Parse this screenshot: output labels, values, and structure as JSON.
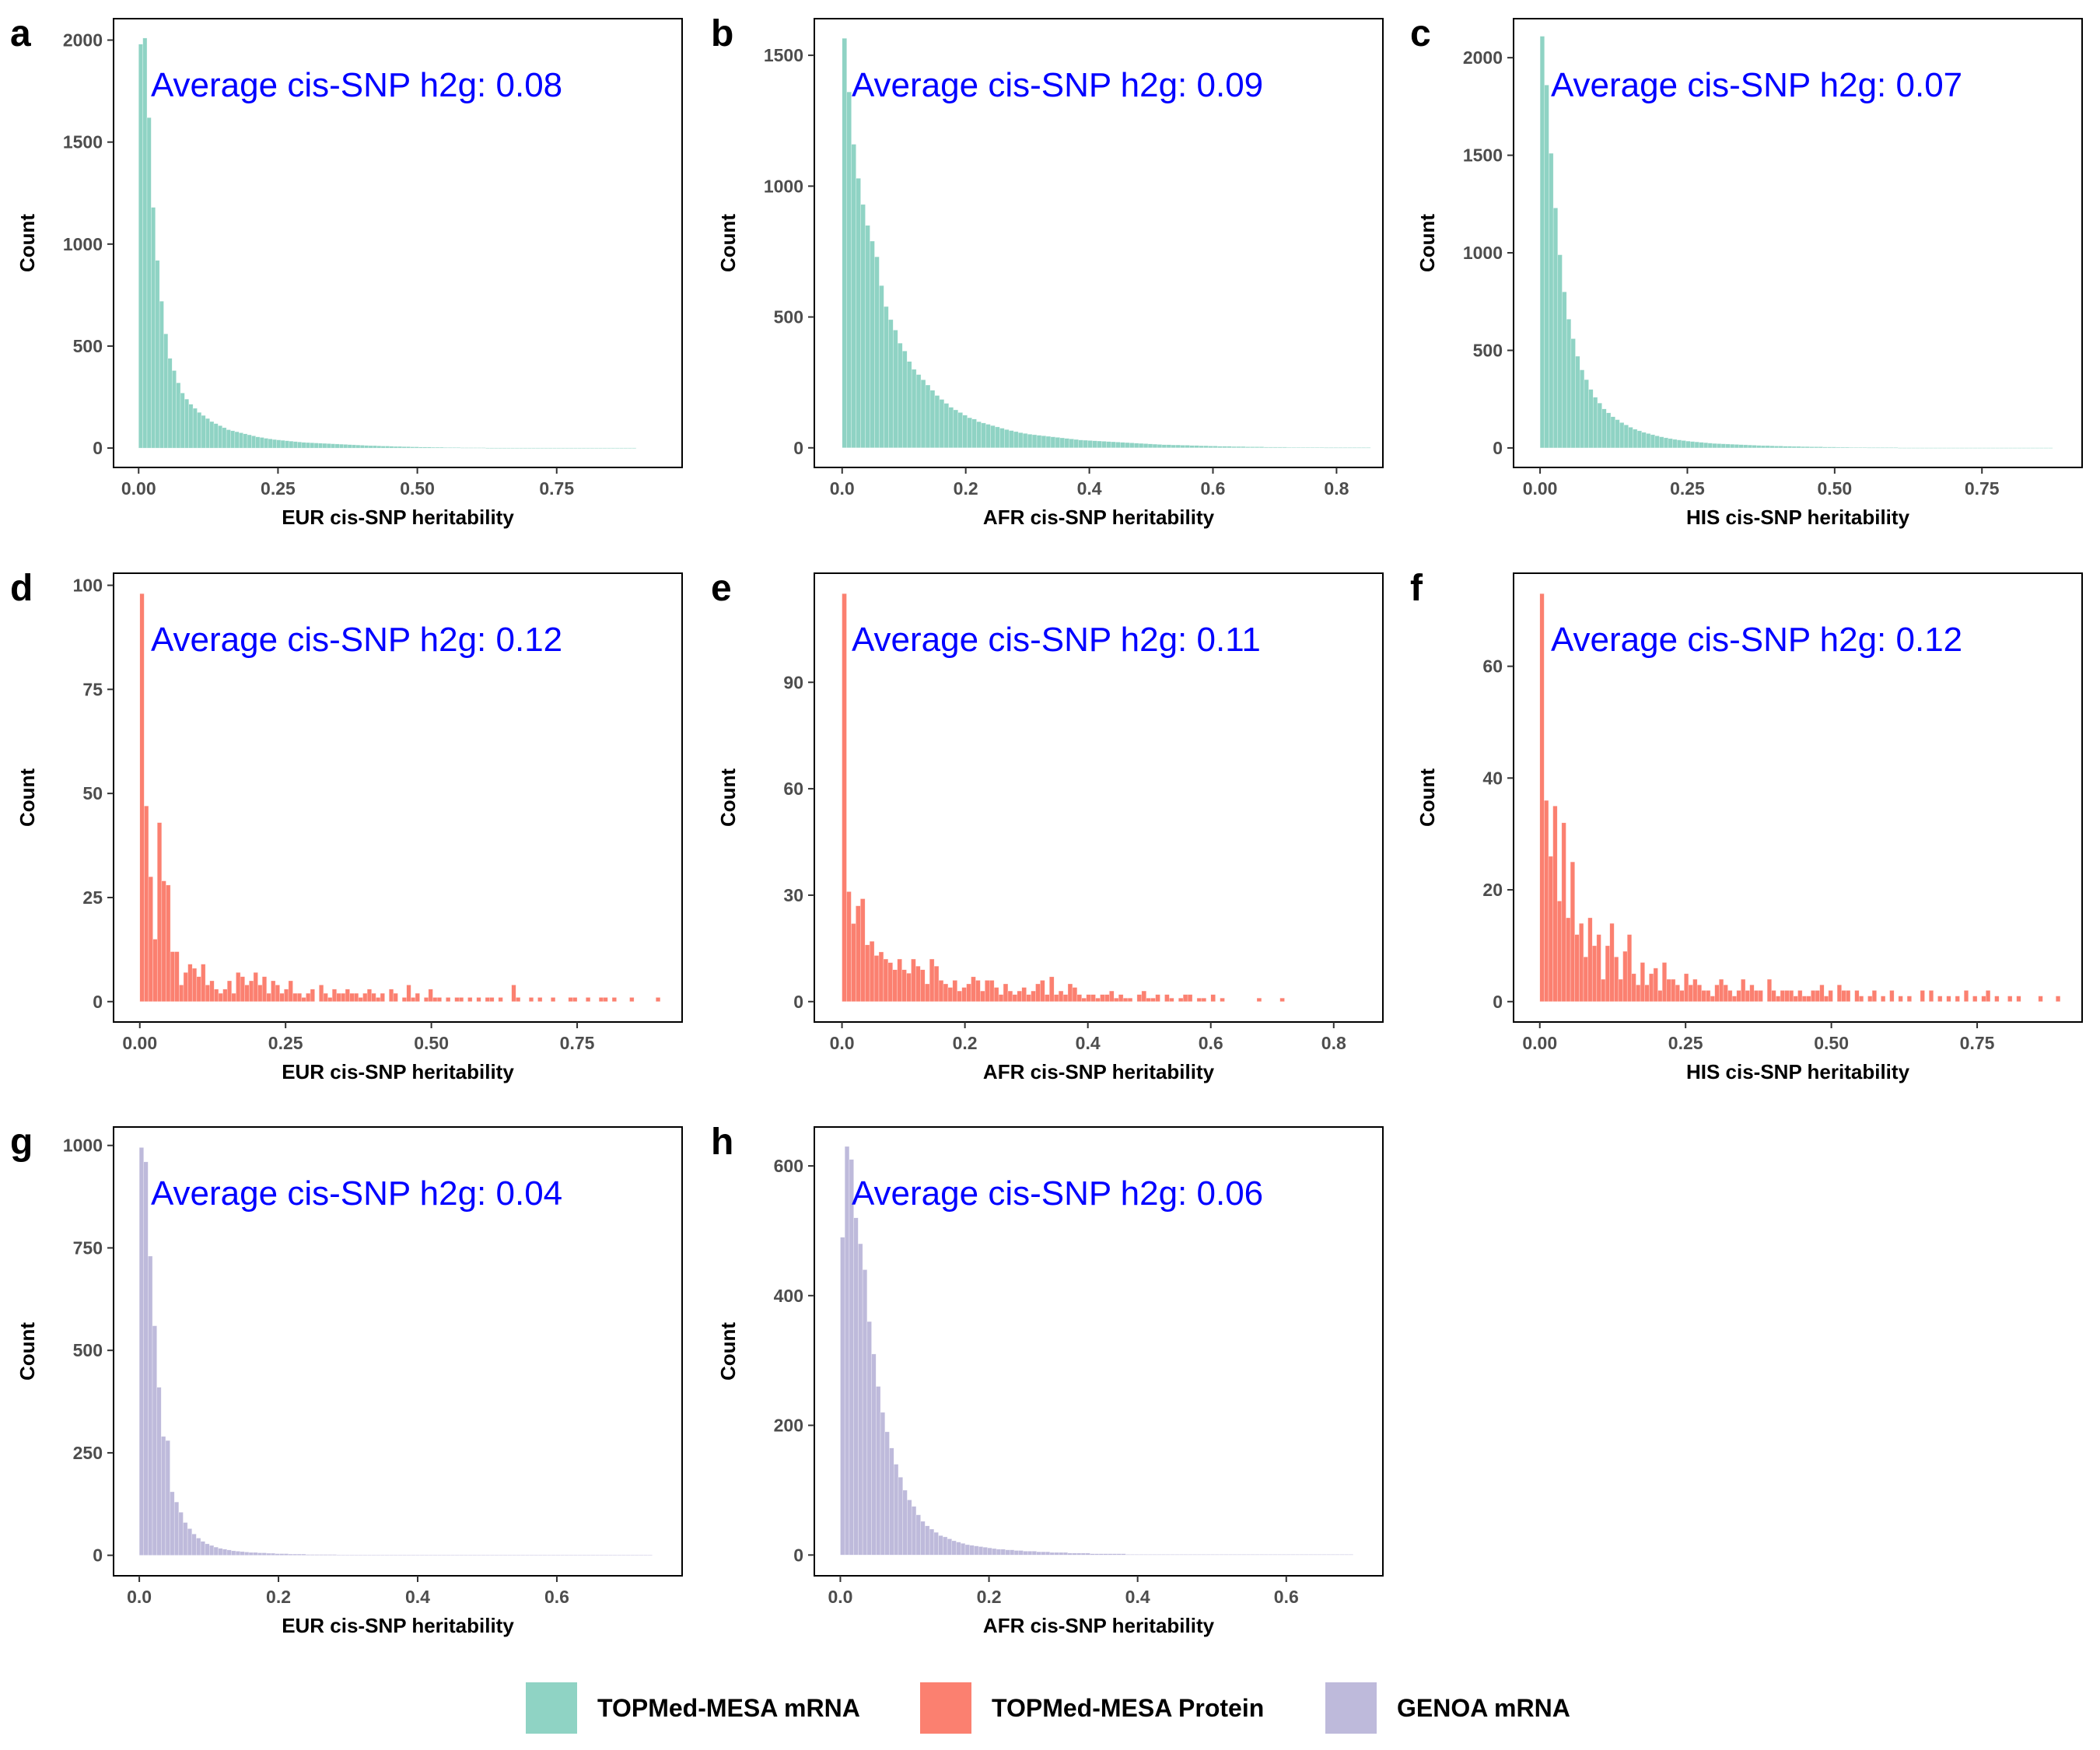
{
  "legend": [
    {
      "label": "TOPMed-MESA mRNA",
      "color": "#8fd3c4"
    },
    {
      "label": "TOPMed-MESA Protein",
      "color": "#fb8070"
    },
    {
      "label": "GENOA mRNA",
      "color": "#bebadb"
    }
  ],
  "chart_data": [
    {
      "panel": "a",
      "type": "bar",
      "ylabel": "Count",
      "xlabel": "EUR cis-SNP heritability",
      "annotation": "Average cis-SNP h2g: 0.08",
      "color": "#8fd3c4",
      "xlim": [
        -0.045,
        0.975
      ],
      "ylim": [
        -95,
        2105
      ],
      "xticks": [
        0.0,
        0.25,
        0.5,
        0.75
      ],
      "xtick_labels": [
        "0.00",
        "0.25",
        "0.50",
        "0.75"
      ],
      "yticks": [
        0,
        500,
        1000,
        1500,
        2000
      ],
      "ytick_labels": [
        "0",
        "500",
        "1000",
        "1500",
        "2000"
      ],
      "x_start": 0.0,
      "bin_width": 0.0075,
      "values": [
        1980,
        2010,
        1620,
        1180,
        920,
        720,
        560,
        440,
        380,
        320,
        270,
        240,
        215,
        195,
        175,
        160,
        145,
        130,
        120,
        110,
        100,
        90,
        85,
        80,
        75,
        70,
        65,
        60,
        55,
        52,
        48,
        45,
        42,
        40,
        38,
        36,
        34,
        32,
        30,
        28,
        27,
        26,
        25,
        24,
        23,
        22,
        21,
        20,
        19,
        18,
        17,
        16,
        15,
        14,
        13,
        12,
        12,
        11,
        10,
        10,
        9,
        8,
        8,
        7,
        7,
        6,
        6,
        5,
        5,
        5,
        4,
        4,
        4,
        3,
        3,
        3,
        3,
        2,
        2,
        2,
        2,
        2,
        2,
        1,
        1,
        1,
        1,
        1,
        1,
        1,
        1,
        1,
        1,
        1,
        1,
        1,
        1,
        1,
        1,
        1,
        1,
        1,
        1,
        1,
        1,
        1,
        1,
        1,
        1,
        1,
        1,
        1,
        1,
        1,
        1,
        1,
        1,
        1,
        1
      ]
    },
    {
      "panel": "b",
      "type": "bar",
      "ylabel": "Count",
      "xlabel": "AFR cis-SNP heritability",
      "annotation": "Average cis-SNP h2g: 0.09",
      "color": "#8fd3c4",
      "xlim": [
        -0.045,
        0.875
      ],
      "ylim": [
        -75,
        1640
      ],
      "xticks": [
        0.0,
        0.2,
        0.4,
        0.6,
        0.8
      ],
      "xtick_labels": [
        "0.0",
        "0.2",
        "0.4",
        "0.6",
        "0.8"
      ],
      "yticks": [
        0,
        500,
        1000,
        1500
      ],
      "ytick_labels": [
        "0",
        "500",
        "1000",
        "1500"
      ],
      "x_start": 0.0,
      "bin_width": 0.0075,
      "values": [
        1565,
        1360,
        1160,
        1030,
        930,
        850,
        790,
        730,
        620,
        540,
        490,
        450,
        400,
        370,
        330,
        300,
        280,
        260,
        240,
        220,
        200,
        185,
        170,
        155,
        145,
        135,
        125,
        115,
        110,
        100,
        95,
        90,
        85,
        80,
        75,
        70,
        66,
        62,
        58,
        55,
        52,
        50,
        48,
        46,
        44,
        42,
        40,
        38,
        36,
        34,
        32,
        30,
        29,
        28,
        27,
        26,
        25,
        24,
        23,
        22,
        21,
        20,
        19,
        18,
        17,
        16,
        15,
        14,
        13,
        12,
        12,
        11,
        11,
        10,
        10,
        9,
        9,
        8,
        8,
        7,
        7,
        6,
        6,
        6,
        5,
        5,
        5,
        4,
        4,
        4,
        4,
        3,
        3,
        3,
        3,
        3,
        2,
        2,
        2,
        2,
        2,
        2,
        2,
        2,
        1,
        1,
        1,
        1,
        1,
        1,
        1,
        1,
        1,
        1
      ]
    },
    {
      "panel": "c",
      "type": "bar",
      "ylabel": "Count",
      "xlabel": "HIS cis-SNP heritability",
      "annotation": "Average cis-SNP h2g: 0.07",
      "color": "#8fd3c4",
      "xlim": [
        -0.045,
        0.92
      ],
      "ylim": [
        -100,
        2200
      ],
      "xticks": [
        0.0,
        0.25,
        0.5,
        0.75
      ],
      "xtick_labels": [
        "0.00",
        "0.25",
        "0.50",
        "0.75"
      ],
      "yticks": [
        0,
        500,
        1000,
        1500,
        2000
      ],
      "ytick_labels": [
        "0",
        "500",
        "1000",
        "1500",
        "2000"
      ],
      "x_start": 0.0,
      "bin_width": 0.0075,
      "values": [
        2110,
        1860,
        1510,
        1230,
        990,
        800,
        660,
        560,
        470,
        400,
        350,
        300,
        260,
        230,
        200,
        180,
        160,
        145,
        130,
        118,
        106,
        96,
        88,
        80,
        74,
        68,
        62,
        57,
        52,
        48,
        44,
        41,
        38,
        35,
        33,
        31,
        29,
        27,
        25,
        23,
        22,
        21,
        20,
        19,
        18,
        17,
        16,
        15,
        14,
        13,
        12,
        12,
        11,
        10,
        10,
        9,
        9,
        8,
        8,
        7,
        7,
        6,
        6,
        6,
        5,
        5,
        5,
        4,
        4,
        4,
        3,
        3,
        3,
        3,
        2,
        2,
        2,
        2,
        2,
        2,
        2,
        1,
        1,
        1,
        1,
        1,
        1,
        1,
        1,
        1,
        1,
        1,
        1,
        1,
        1,
        1,
        1,
        1,
        1,
        1,
        1,
        1,
        1,
        1,
        1,
        1,
        1,
        1,
        1,
        1,
        1,
        1,
        1,
        1,
        1,
        1
      ]
    },
    {
      "panel": "d",
      "type": "bar",
      "ylabel": "Count",
      "xlabel": "EUR cis-SNP heritability",
      "annotation": "Average cis-SNP h2g: 0.12",
      "color": "#fb8070",
      "xlim": [
        -0.045,
        0.93
      ],
      "ylim": [
        -4.9,
        102.9
      ],
      "xticks": [
        0.0,
        0.25,
        0.5,
        0.75
      ],
      "xtick_labels": [
        "0.00",
        "0.25",
        "0.50",
        "0.75"
      ],
      "yticks": [
        0,
        25,
        50,
        75,
        100
      ],
      "ytick_labels": [
        "0",
        "25",
        "50",
        "75",
        "100"
      ],
      "x_start": 0.0,
      "bin_width": 0.0075,
      "values": [
        98,
        47,
        30,
        15,
        43,
        29,
        28,
        12,
        12,
        4,
        7,
        9,
        8,
        6,
        9,
        4,
        5,
        3,
        2,
        3,
        5,
        2,
        7,
        6,
        4,
        5,
        7,
        4,
        6,
        2,
        5,
        4,
        2,
        3,
        5,
        2,
        2,
        1,
        2,
        3,
        0,
        4,
        2,
        1,
        3,
        2,
        2,
        3,
        2,
        2,
        1,
        2,
        3,
        2,
        1,
        2,
        0,
        3,
        2,
        0,
        1,
        4,
        1,
        2,
        0,
        1,
        3,
        1,
        1,
        0,
        1,
        0,
        1,
        1,
        0,
        1,
        0,
        1,
        0,
        1,
        1,
        0,
        1,
        0,
        0,
        4,
        1,
        0,
        0,
        1,
        0,
        1,
        0,
        0,
        1,
        0,
        0,
        0,
        1,
        1,
        0,
        0,
        1,
        0,
        0,
        1,
        1,
        0,
        1,
        0,
        0,
        0,
        1,
        0,
        0,
        0,
        0,
        0,
        1
      ]
    },
    {
      "panel": "e",
      "type": "bar",
      "ylabel": "Count",
      "xlabel": "AFR cis-SNP heritability",
      "annotation": "Average cis-SNP h2g: 0.11",
      "color": "#fb8070",
      "xlim": [
        -0.045,
        0.88
      ],
      "ylim": [
        -5.75,
        120.75
      ],
      "xticks": [
        0.0,
        0.2,
        0.4,
        0.6,
        0.8
      ],
      "xtick_labels": [
        "0.0",
        "0.2",
        "0.4",
        "0.6",
        "0.8"
      ],
      "yticks": [
        0,
        30,
        60,
        90
      ],
      "ytick_labels": [
        "0",
        "30",
        "60",
        "90"
      ],
      "x_start": 0.0,
      "bin_width": 0.0075,
      "values": [
        115,
        31,
        22,
        27,
        29,
        16,
        17,
        13,
        14,
        12,
        11,
        9,
        12,
        9,
        8,
        12,
        10,
        9,
        5,
        12,
        10,
        6,
        5,
        4,
        6,
        3,
        4,
        5,
        7,
        6,
        3,
        6,
        6,
        4,
        2,
        5,
        3,
        2,
        3,
        4,
        2,
        3,
        5,
        6,
        2,
        7,
        2,
        3,
        2,
        5,
        4,
        2,
        1,
        2,
        2,
        1,
        2,
        2,
        3,
        1,
        2,
        1,
        1,
        0,
        2,
        3,
        1,
        1,
        2,
        0,
        2,
        1,
        0,
        1,
        2,
        2,
        0,
        1,
        1,
        0,
        2,
        0,
        1,
        0,
        0,
        0,
        0,
        0,
        0,
        0,
        1,
        0,
        0,
        0,
        0,
        1,
        0,
        0,
        0,
        0,
        0,
        0,
        0,
        0,
        0,
        0,
        0,
        0,
        0,
        0,
        0,
        0,
        0
      ]
    },
    {
      "panel": "f",
      "type": "bar",
      "ylabel": "Count",
      "xlabel": "HIS cis-SNP heritability",
      "annotation": "Average cis-SNP h2g: 0.12",
      "color": "#fb8070",
      "xlim": [
        -0.045,
        0.93
      ],
      "ylim": [
        -3.65,
        76.65
      ],
      "xticks": [
        0.0,
        0.25,
        0.5,
        0.75
      ],
      "xtick_labels": [
        "0.00",
        "0.25",
        "0.50",
        "0.75"
      ],
      "yticks": [
        0,
        20,
        40,
        60
      ],
      "ytick_labels": [
        "0",
        "20",
        "40",
        "60"
      ],
      "x_start": 0.0,
      "bin_width": 0.0075,
      "values": [
        73,
        36,
        26,
        35,
        18,
        32,
        15,
        25,
        12,
        14,
        8,
        15,
        10,
        12,
        4,
        10,
        14,
        8,
        4,
        9,
        12,
        5,
        3,
        7,
        3,
        5,
        6,
        2,
        7,
        4,
        4,
        3,
        2,
        5,
        3,
        4,
        3,
        2,
        2,
        1,
        3,
        4,
        3,
        2,
        1,
        2,
        4,
        2,
        3,
        2,
        2,
        0,
        4,
        2,
        1,
        2,
        2,
        2,
        1,
        2,
        1,
        1,
        2,
        2,
        3,
        1,
        2,
        0,
        3,
        2,
        2,
        0,
        2,
        1,
        0,
        1,
        2,
        0,
        1,
        0,
        2,
        0,
        1,
        0,
        1,
        0,
        0,
        2,
        0,
        2,
        0,
        1,
        0,
        1,
        0,
        1,
        0,
        2,
        0,
        1,
        0,
        1,
        2,
        0,
        1,
        0,
        0,
        1,
        0,
        1,
        0,
        0,
        0,
        0,
        1,
        0,
        0,
        0,
        1
      ]
    },
    {
      "panel": "g",
      "type": "bar",
      "ylabel": "Count",
      "xlabel": "EUR cis-SNP heritability",
      "annotation": "Average cis-SNP h2g: 0.04",
      "color": "#bebadb",
      "xlim": [
        -0.037,
        0.78
      ],
      "ylim": [
        -50,
        1045
      ],
      "xticks": [
        0.0,
        0.2,
        0.4,
        0.6
      ],
      "xtick_labels": [
        "0.0",
        "0.2",
        "0.4",
        "0.6"
      ],
      "yticks": [
        0,
        250,
        500,
        750,
        1000
      ],
      "ytick_labels": [
        "0",
        "250",
        "500",
        "750",
        "1000"
      ],
      "x_start": 0.0,
      "bin_width": 0.0063,
      "values": [
        995,
        960,
        730,
        560,
        410,
        290,
        280,
        155,
        130,
        105,
        80,
        65,
        52,
        42,
        34,
        28,
        24,
        20,
        17,
        15,
        13,
        11,
        10,
        9,
        8,
        7,
        7,
        6,
        6,
        5,
        5,
        4,
        4,
        4,
        3,
        3,
        3,
        3,
        2,
        2,
        2,
        2,
        2,
        2,
        2,
        1,
        1,
        1,
        1,
        1,
        1,
        1,
        1,
        1,
        1,
        1,
        1,
        1,
        1,
        1,
        1,
        1,
        1,
        1,
        1,
        1,
        1,
        1,
        1,
        1,
        1,
        1,
        1,
        1,
        1,
        1,
        1,
        1,
        1,
        1,
        1,
        1,
        1,
        1,
        1,
        1,
        1,
        1,
        1,
        1,
        1,
        1,
        1,
        1,
        1,
        1,
        1,
        1,
        1,
        1,
        1,
        1,
        1,
        1,
        1,
        1,
        1,
        1,
        1,
        1,
        1,
        1,
        1,
        1,
        1,
        1,
        1
      ]
    },
    {
      "panel": "h",
      "type": "bar",
      "ylabel": "Count",
      "xlabel": "AFR cis-SNP heritability",
      "annotation": "Average cis-SNP h2g: 0.06",
      "color": "#bebadb",
      "xlim": [
        -0.035,
        0.73
      ],
      "ylim": [
        -32,
        660
      ],
      "xticks": [
        0.0,
        0.2,
        0.4,
        0.6
      ],
      "xtick_labels": [
        "0.0",
        "0.2",
        "0.4",
        "0.6"
      ],
      "yticks": [
        0,
        200,
        400,
        600
      ],
      "ytick_labels": [
        "0",
        "200",
        "400",
        "600"
      ],
      "x_start": 0.0,
      "bin_width": 0.006,
      "values": [
        490,
        630,
        610,
        520,
        480,
        440,
        360,
        310,
        260,
        220,
        190,
        165,
        140,
        120,
        100,
        85,
        75,
        62,
        52,
        45,
        40,
        35,
        30,
        28,
        25,
        22,
        20,
        18,
        16,
        15,
        14,
        13,
        12,
        11,
        10,
        9,
        9,
        8,
        8,
        7,
        7,
        6,
        6,
        6,
        5,
        5,
        5,
        4,
        4,
        4,
        4,
        3,
        3,
        3,
        3,
        3,
        2,
        2,
        2,
        2,
        2,
        2,
        2,
        2,
        1,
        1,
        1,
        1,
        1,
        1,
        1,
        1,
        1,
        1,
        1,
        1,
        1,
        1,
        1,
        1,
        1,
        1,
        1,
        1,
        1,
        1,
        1,
        1,
        1,
        1,
        1,
        1,
        1,
        1,
        1,
        1,
        1,
        1,
        1,
        1,
        1,
        1,
        1,
        1,
        1,
        1,
        1,
        1,
        1,
        1,
        1,
        1,
        1,
        1,
        1
      ]
    }
  ]
}
